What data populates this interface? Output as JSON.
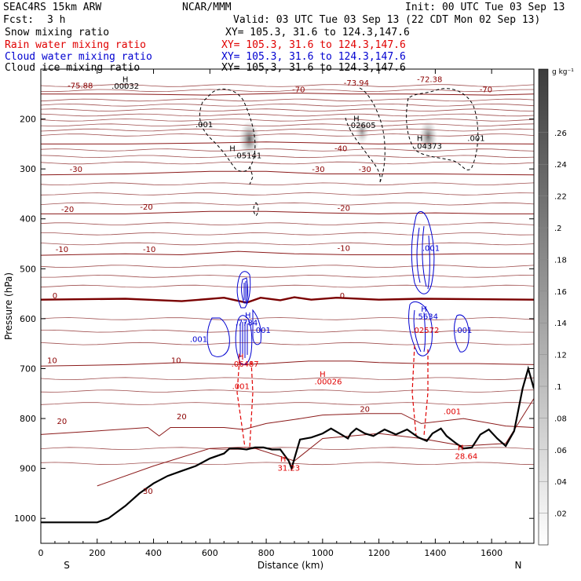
{
  "header": {
    "model": "SEAC4RS 15km ARW",
    "org": "NCAR/MMM",
    "init": "Init: 00 UTC Tue 03 Sep 13",
    "fcst_label": "Fcst:",
    "fcst_value": "3 h",
    "valid": "Valid: 03 UTC Tue 03 Sep 13 (22 CDT Mon 02 Sep 13)",
    "fields": [
      {
        "label": "Snow mixing ratio",
        "xy": "XY= 105.3, 31.6 to 124.3,147.6",
        "color": "#000000"
      },
      {
        "label": "Rain water mixing ratio",
        "xy": "XY= 105.3, 31.6 to 124.3,147.6",
        "color": "#e00000"
      },
      {
        "label": "Cloud water mixing ratio",
        "xy": "XY= 105.3, 31.6 to 124.3,147.6",
        "color": "#0000d0"
      },
      {
        "label": "Cloud ice mixing ratio",
        "xy": "XY= 105.3, 31.6 to 124.3,147.6",
        "color": "#000000"
      }
    ]
  },
  "chart_data": {
    "type": "cross-section",
    "xlabel": "Distance (km)",
    "ylabel": "Pressure (hPa)",
    "xlim": [
      0,
      1750
    ],
    "ylim": [
      1050,
      100
    ],
    "x_ticks": [
      0,
      200,
      400,
      600,
      800,
      1000,
      1200,
      1400,
      1600
    ],
    "y_ticks": [
      200,
      300,
      400,
      500,
      600,
      700,
      800,
      900,
      1000
    ],
    "left_end_label": "S",
    "right_end_label": "N",
    "colorbar": {
      "unit": "g kg⁻¹",
      "ticks": [
        0.02,
        0.04,
        0.06,
        0.08,
        0.1,
        0.12,
        0.14,
        0.16,
        0.18,
        0.2,
        0.22,
        0.24,
        0.26
      ],
      "tick_labels": [
        ".02",
        ".04",
        ".06",
        ".08",
        ".1",
        ".12",
        ".14",
        ".16",
        ".18",
        ".2",
        ".22",
        ".24",
        ".26"
      ],
      "range": [
        0,
        0.3
      ]
    },
    "shading_maxima": [
      {
        "x": 740,
        "p": 240,
        "value": ".05141"
      },
      {
        "x": 1375,
        "p": 235,
        "value": ".04373"
      },
      {
        "x": 1140,
        "p": 225,
        "value": ".02605"
      },
      {
        "x": 300,
        "p": 133,
        "value": ".00032"
      }
    ],
    "terrain": [
      [
        0,
        1008
      ],
      [
        200,
        1008
      ],
      [
        240,
        1000
      ],
      [
        300,
        975
      ],
      [
        350,
        950
      ],
      [
        400,
        930
      ],
      [
        450,
        915
      ],
      [
        500,
        905
      ],
      [
        550,
        895
      ],
      [
        600,
        880
      ],
      [
        650,
        870
      ],
      [
        670,
        860
      ],
      [
        700,
        860
      ],
      [
        730,
        862
      ],
      [
        760,
        858
      ],
      [
        790,
        858
      ],
      [
        820,
        862
      ],
      [
        850,
        862
      ],
      [
        880,
        885
      ],
      [
        890,
        900
      ],
      [
        900,
        880
      ],
      [
        920,
        842
      ],
      [
        960,
        838
      ],
      [
        1000,
        830
      ],
      [
        1030,
        820
      ],
      [
        1060,
        830
      ],
      [
        1090,
        840
      ],
      [
        1100,
        830
      ],
      [
        1120,
        820
      ],
      [
        1150,
        830
      ],
      [
        1180,
        835
      ],
      [
        1220,
        822
      ],
      [
        1260,
        832
      ],
      [
        1300,
        822
      ],
      [
        1340,
        838
      ],
      [
        1370,
        845
      ],
      [
        1390,
        830
      ],
      [
        1420,
        820
      ],
      [
        1440,
        835
      ],
      [
        1470,
        848
      ],
      [
        1500,
        860
      ],
      [
        1530,
        858
      ],
      [
        1560,
        832
      ],
      [
        1590,
        822
      ],
      [
        1620,
        840
      ],
      [
        1650,
        855
      ],
      [
        1680,
        825
      ],
      [
        1710,
        740
      ],
      [
        1730,
        700
      ],
      [
        1750,
        740
      ]
    ],
    "temperature_contours": [
      {
        "label": "30",
        "pts": [
          [
            200,
            935
          ],
          [
            400,
            895
          ],
          [
            600,
            860
          ],
          [
            700,
            858
          ],
          [
            750,
            858
          ],
          [
            900,
            885
          ],
          [
            1000,
            840
          ],
          [
            1200,
            830
          ],
          [
            1350,
            840
          ],
          [
            1500,
            855
          ],
          [
            1650,
            850
          ],
          [
            1750,
            760
          ]
        ]
      },
      {
        "label": "20",
        "pts": [
          [
            0,
            832
          ],
          [
            200,
            825
          ],
          [
            380,
            818
          ],
          [
            420,
            835
          ],
          [
            460,
            818
          ],
          [
            650,
            818
          ],
          [
            720,
            822
          ],
          [
            800,
            810
          ],
          [
            900,
            802
          ],
          [
            1000,
            793
          ],
          [
            1150,
            790
          ],
          [
            1280,
            790
          ],
          [
            1350,
            810
          ],
          [
            1500,
            800
          ],
          [
            1650,
            815
          ],
          [
            1750,
            818
          ]
        ]
      },
      {
        "label": "10",
        "pts": [
          [
            0,
            695
          ],
          [
            300,
            692
          ],
          [
            500,
            688
          ],
          [
            700,
            692
          ],
          [
            800,
            690
          ],
          [
            950,
            685
          ],
          [
            1100,
            685
          ],
          [
            1200,
            688
          ],
          [
            1350,
            690
          ],
          [
            1550,
            690
          ],
          [
            1750,
            692
          ]
        ]
      },
      {
        "label": "0",
        "pts": [
          [
            0,
            562
          ],
          [
            300,
            560
          ],
          [
            500,
            565
          ],
          [
            650,
            558
          ],
          [
            730,
            568
          ],
          [
            780,
            558
          ],
          [
            850,
            563
          ],
          [
            900,
            557
          ],
          [
            960,
            562
          ],
          [
            1050,
            558
          ],
          [
            1200,
            562
          ],
          [
            1350,
            560
          ],
          [
            1550,
            561
          ],
          [
            1750,
            562
          ]
        ]
      },
      {
        "label": "-10",
        "pts": [
          [
            0,
            473
          ],
          [
            300,
            470
          ],
          [
            500,
            472
          ],
          [
            700,
            465
          ],
          [
            900,
            470
          ],
          [
            1100,
            472
          ],
          [
            1300,
            472
          ],
          [
            1500,
            470
          ],
          [
            1750,
            470
          ]
        ]
      },
      {
        "label": "-20",
        "pts": [
          [
            0,
            390
          ],
          [
            300,
            390
          ],
          [
            600,
            385
          ],
          [
            800,
            385
          ],
          [
            1000,
            388
          ],
          [
            1200,
            390
          ],
          [
            1400,
            388
          ],
          [
            1600,
            390
          ],
          [
            1750,
            390
          ]
        ]
      },
      {
        "label": "-30",
        "pts": [
          [
            0,
            312
          ],
          [
            300,
            310
          ],
          [
            600,
            305
          ],
          [
            800,
            305
          ],
          [
            1000,
            310
          ],
          [
            1200,
            310
          ],
          [
            1400,
            310
          ],
          [
            1750,
            312
          ]
        ]
      },
      {
        "label": "-40",
        "pts": [
          [
            0,
            250
          ],
          [
            300,
            250
          ],
          [
            600,
            248
          ],
          [
            800,
            246
          ],
          [
            1000,
            248
          ],
          [
            1200,
            250
          ],
          [
            1400,
            249
          ],
          [
            1750,
            250
          ]
        ]
      },
      {
        "label": "-70",
        "pts": [
          [
            0,
            150
          ],
          [
            300,
            150
          ],
          [
            600,
            152
          ],
          [
            900,
            148
          ],
          [
            1100,
            150
          ],
          [
            1300,
            150
          ],
          [
            1600,
            152
          ],
          [
            1750,
            150
          ]
        ]
      }
    ],
    "extra_isotherm_levels": [
      133,
      143,
      162,
      172,
      182,
      192,
      202,
      212,
      222,
      232,
      262,
      275,
      288,
      330,
      350,
      370,
      410,
      430,
      450,
      495,
      515,
      535,
      600,
      625,
      650,
      720,
      745,
      770,
      860,
      890
    ],
    "contour_labels": [
      {
        "text": "-75.88",
        "x": 140,
        "p": 132,
        "color": "#8b0000"
      },
      {
        "text": "H",
        "x": 300,
        "p": 120,
        "color": "#000000"
      },
      {
        "text": ".00032",
        "x": 300,
        "p": 133,
        "color": "#000000"
      },
      {
        "text": "-70",
        "x": 915,
        "p": 140,
        "color": "#8b0000"
      },
      {
        "text": "-73.94",
        "x": 1120,
        "p": 127,
        "color": "#8b0000"
      },
      {
        "text": "-72.38",
        "x": 1380,
        "p": 120,
        "color": "#8b0000"
      },
      {
        "text": "-70",
        "x": 1580,
        "p": 140,
        "color": "#8b0000"
      },
      {
        "text": ".001",
        "x": 580,
        "p": 210,
        "color": "#000000"
      },
      {
        "text": "H",
        "x": 1120,
        "p": 198,
        "color": "#000000"
      },
      {
        "text": ".02605",
        "x": 1140,
        "p": 212,
        "color": "#000000"
      },
      {
        "text": "H",
        "x": 680,
        "p": 258,
        "color": "#000000"
      },
      {
        "text": ".05141",
        "x": 735,
        "p": 272,
        "color": "#000000"
      },
      {
        "text": "H",
        "x": 1345,
        "p": 238,
        "color": "#000000"
      },
      {
        "text": ".04373",
        "x": 1375,
        "p": 253,
        "color": "#000000"
      },
      {
        "text": ".001",
        "x": 1545,
        "p": 238,
        "color": "#000000"
      },
      {
        "text": "-40",
        "x": 1065,
        "p": 258,
        "color": "#8b0000"
      },
      {
        "text": "-30",
        "x": 125,
        "p": 300,
        "color": "#8b0000"
      },
      {
        "text": "-30",
        "x": 985,
        "p": 300,
        "color": "#8b0000"
      },
      {
        "text": "-30",
        "x": 1150,
        "p": 300,
        "color": "#8b0000"
      },
      {
        "text": "-20",
        "x": 95,
        "p": 380,
        "color": "#8b0000"
      },
      {
        "text": "-20",
        "x": 375,
        "p": 375,
        "color": "#8b0000"
      },
      {
        "text": "-20",
        "x": 1075,
        "p": 378,
        "color": "#8b0000"
      },
      {
        "text": "-10",
        "x": 75,
        "p": 460,
        "color": "#8b0000"
      },
      {
        "text": "-10",
        "x": 385,
        "p": 460,
        "color": "#8b0000"
      },
      {
        "text": "-10",
        "x": 1075,
        "p": 458,
        "color": "#8b0000"
      },
      {
        "text": ".001",
        "x": 1385,
        "p": 458,
        "color": "#0000d0"
      },
      {
        "text": "0",
        "x": 50,
        "p": 553,
        "color": "#8b0000"
      },
      {
        "text": "0",
        "x": 1070,
        "p": 553,
        "color": "#8b0000"
      },
      {
        "text": "H",
        "x": 735,
        "p": 592,
        "color": "#0000d0"
      },
      {
        "text": ".7784",
        "x": 730,
        "p": 607,
        "color": "#0000d0"
      },
      {
        "text": "H",
        "x": 1360,
        "p": 580,
        "color": "#0000d0"
      },
      {
        "text": ".5634",
        "x": 1370,
        "p": 595,
        "color": "#0000d0"
      },
      {
        "text": ".02572",
        "x": 1365,
        "p": 622,
        "color": "#e00000"
      },
      {
        "text": ".001",
        "x": 560,
        "p": 640,
        "color": "#0000d0"
      },
      {
        "text": ".001",
        "x": 785,
        "p": 622,
        "color": "#0000d0"
      },
      {
        "text": ".001",
        "x": 1500,
        "p": 622,
        "color": "#0000d0"
      },
      {
        "text": "H",
        "x": 710,
        "p": 675,
        "color": "#e00000"
      },
      {
        "text": ".06487",
        "x": 725,
        "p": 690,
        "color": "#e00000"
      },
      {
        "text": "10",
        "x": 40,
        "p": 683,
        "color": "#8b0000"
      },
      {
        "text": "10",
        "x": 480,
        "p": 683,
        "color": "#8b0000"
      },
      {
        "text": "H",
        "x": 1000,
        "p": 710,
        "color": "#e00000"
      },
      {
        "text": ".00026",
        "x": 1020,
        "p": 725,
        "color": "#e00000"
      },
      {
        "text": ".001",
        "x": 710,
        "p": 735,
        "color": "#e00000"
      },
      {
        "text": "20",
        "x": 75,
        "p": 805,
        "color": "#8b0000"
      },
      {
        "text": "20",
        "x": 500,
        "p": 795,
        "color": "#8b0000"
      },
      {
        "text": "20",
        "x": 1150,
        "p": 780,
        "color": "#8b0000"
      },
      {
        "text": ".001",
        "x": 1460,
        "p": 785,
        "color": "#e00000"
      },
      {
        "text": "H",
        "x": 1490,
        "p": 857,
        "color": "#e00000"
      },
      {
        "text": "28.64",
        "x": 1510,
        "p": 875,
        "color": "#e00000"
      },
      {
        "text": "H",
        "x": 860,
        "p": 880,
        "color": "#e00000"
      },
      {
        "text": "31.23",
        "x": 880,
        "p": 898,
        "color": "#e00000"
      },
      {
        "text": "30",
        "x": 380,
        "p": 945,
        "color": "#8b0000"
      }
    ]
  }
}
